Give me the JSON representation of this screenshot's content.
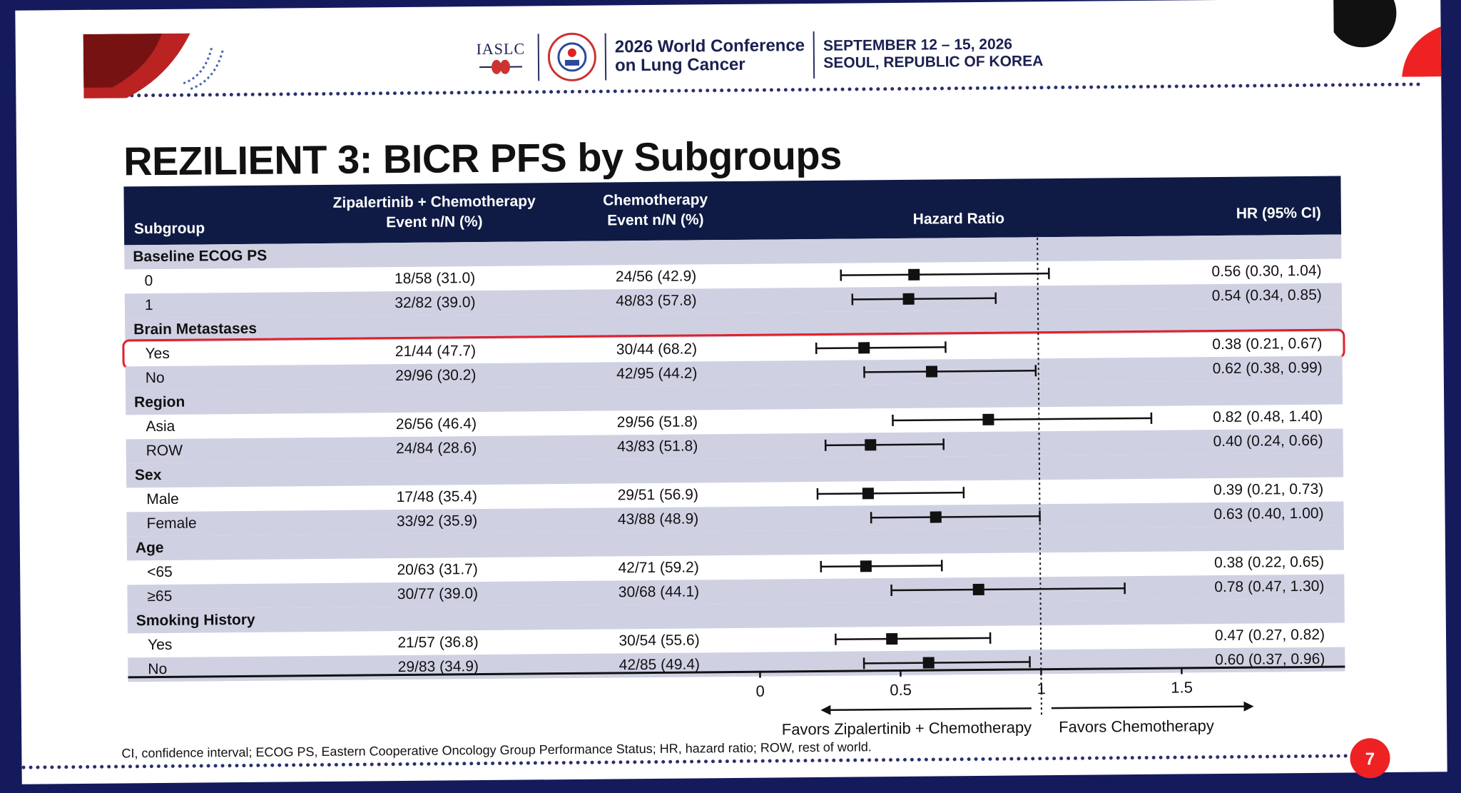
{
  "header": {
    "org": "IASLC",
    "conference_line1": "2026 World Conference",
    "conference_line2": "on Lung Cancer",
    "dates": "SEPTEMBER 12 – 15, 2026",
    "location": "SEOUL, REPUBLIC OF KOREA"
  },
  "slide_title": "REZILIENT 3: BICR PFS by Subgroups",
  "table": {
    "col_subgroup": "Subgroup",
    "col_zip_line1": "Zipalertinib + Chemotherapy",
    "col_zip_line2": "Event n/N (%)",
    "col_chemo_line1": "Chemotherapy",
    "col_chemo_line2": "Event n/N (%)",
    "col_hr": "Hazard Ratio",
    "col_ci": "HR (95% CI)"
  },
  "footnote": "CI, confidence interval; ECOG PS, Eastern Cooperative Oncology Group Performance Status; HR, hazard ratio; ROW, rest of world.",
  "page_number": "7",
  "colors": {
    "header_bg": "#0f1b45",
    "row_shade": "#cfd1e3",
    "highlight": "#e0202a",
    "accent": "#e22222"
  },
  "chart_data": {
    "type": "forest",
    "title": "REZILIENT 3: BICR PFS by Subgroups",
    "xlabel": "Hazard Ratio",
    "x_ticks": [
      "0",
      "0.5",
      "1",
      "1.5"
    ],
    "xlim": [
      0,
      2.1
    ],
    "reference_line": 1,
    "favors_left": "Favors Zipalertinib + Chemotherapy",
    "favors_right": "Favors Chemotherapy",
    "rows": [
      {
        "label": "Baseline ECOG PS",
        "group": true
      },
      {
        "label": "0",
        "zip": "18/58 (31.0)",
        "chemo": "24/56 (42.9)",
        "hr": 0.56,
        "lo": 0.3,
        "hi": 1.04,
        "ci_text": "0.56 (0.30, 1.04)"
      },
      {
        "label": "1",
        "zip": "32/82 (39.0)",
        "chemo": "48/83 (57.8)",
        "hr": 0.54,
        "lo": 0.34,
        "hi": 0.85,
        "ci_text": "0.54 (0.34, 0.85)"
      },
      {
        "label": "Brain Metastases",
        "group": true
      },
      {
        "label": "Yes",
        "zip": "21/44 (47.7)",
        "chemo": "30/44 (68.2)",
        "hr": 0.38,
        "lo": 0.21,
        "hi": 0.67,
        "ci_text": "0.38 (0.21, 0.67)",
        "highlight": true
      },
      {
        "label": "No",
        "zip": "29/96 (30.2)",
        "chemo": "42/95 (44.2)",
        "hr": 0.62,
        "lo": 0.38,
        "hi": 0.99,
        "ci_text": "0.62 (0.38, 0.99)"
      },
      {
        "label": "Region",
        "group": true
      },
      {
        "label": "Asia",
        "zip": "26/56 (46.4)",
        "chemo": "29/56 (51.8)",
        "hr": 0.82,
        "lo": 0.48,
        "hi": 1.4,
        "ci_text": "0.82 (0.48, 1.40)"
      },
      {
        "label": "ROW",
        "zip": "24/84 (28.6)",
        "chemo": "43/83 (51.8)",
        "hr": 0.4,
        "lo": 0.24,
        "hi": 0.66,
        "ci_text": "0.40 (0.24, 0.66)"
      },
      {
        "label": "Sex",
        "group": true
      },
      {
        "label": "Male",
        "zip": "17/48 (35.4)",
        "chemo": "29/51 (56.9)",
        "hr": 0.39,
        "lo": 0.21,
        "hi": 0.73,
        "ci_text": "0.39 (0.21, 0.73)"
      },
      {
        "label": "Female",
        "zip": "33/92 (35.9)",
        "chemo": "43/88 (48.9)",
        "hr": 0.63,
        "lo": 0.4,
        "hi": 1.0,
        "ci_text": "0.63 (0.40, 1.00)"
      },
      {
        "label": "Age",
        "group": true
      },
      {
        "label": "<65",
        "zip": "20/63 (31.7)",
        "chemo": "42/71 (59.2)",
        "hr": 0.38,
        "lo": 0.22,
        "hi": 0.65,
        "ci_text": "0.38 (0.22, 0.65)"
      },
      {
        "label": "≥65",
        "zip": "30/77 (39.0)",
        "chemo": "30/68 (44.1)",
        "hr": 0.78,
        "lo": 0.47,
        "hi": 1.3,
        "ci_text": "0.78 (0.47, 1.30)"
      },
      {
        "label": "Smoking History",
        "group": true
      },
      {
        "label": "Yes",
        "zip": "21/57 (36.8)",
        "chemo": "30/54 (55.6)",
        "hr": 0.47,
        "lo": 0.27,
        "hi": 0.82,
        "ci_text": "0.47 (0.27, 0.82)"
      },
      {
        "label": "No",
        "zip": "29/83 (34.9)",
        "chemo": "42/85 (49.4)",
        "hr": 0.6,
        "lo": 0.37,
        "hi": 0.96,
        "ci_text": "0.60 (0.37, 0.96)"
      }
    ]
  }
}
